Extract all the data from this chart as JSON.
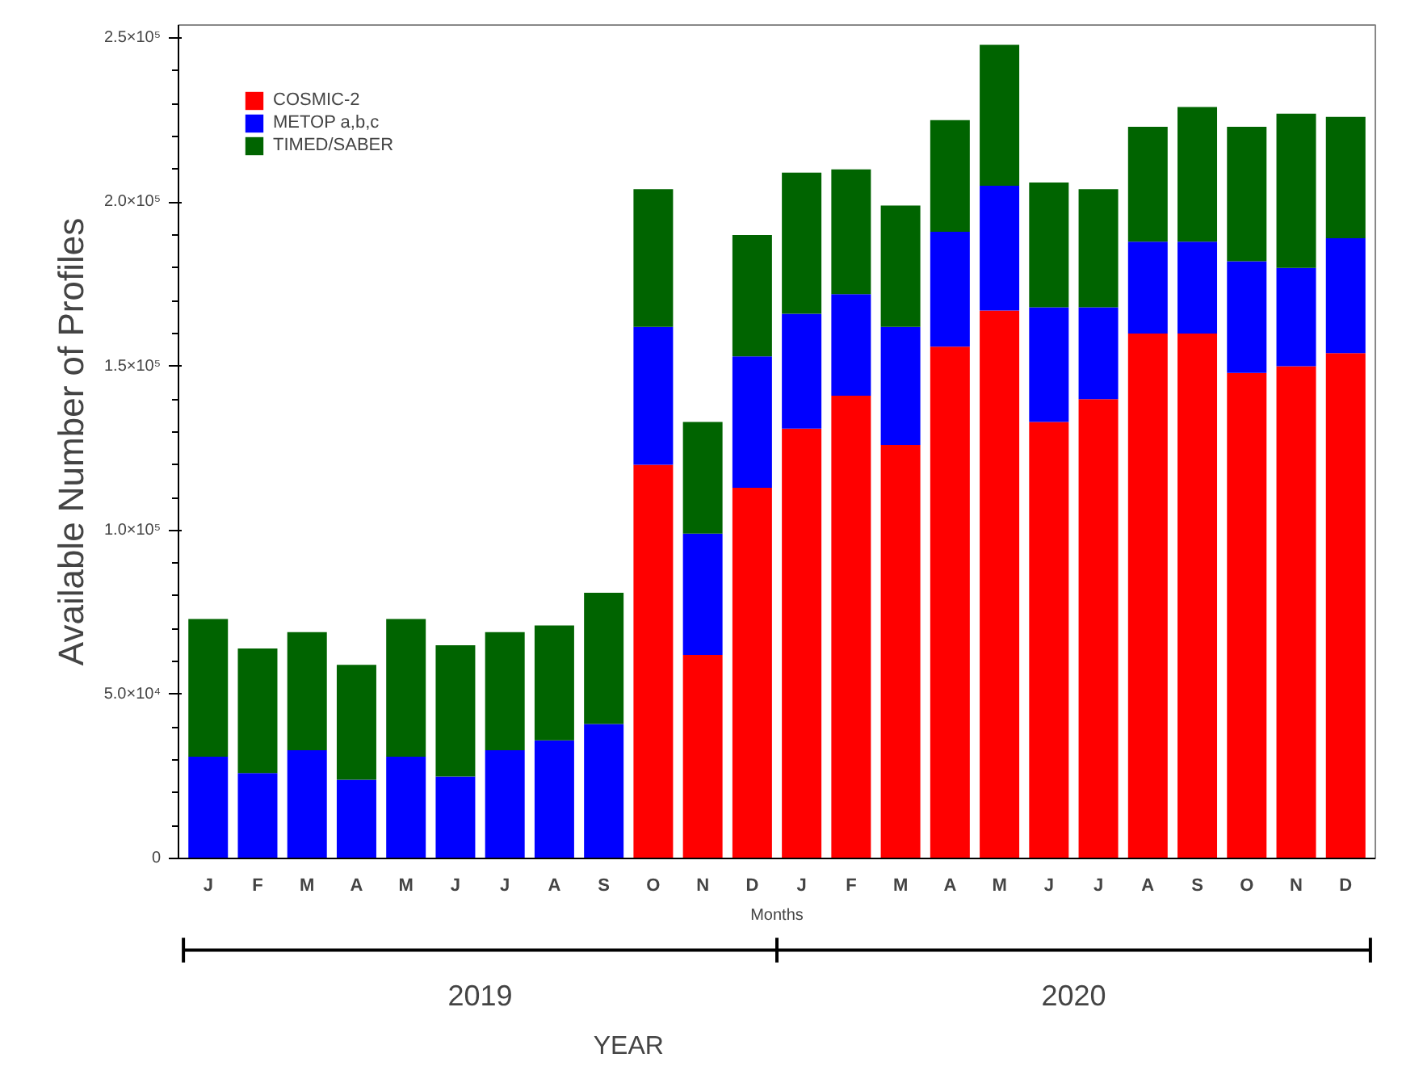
{
  "chart_data": {
    "type": "bar",
    "stacked": true,
    "ylabel": "Available Number of Profiles",
    "xlabel": "Months",
    "categories": [
      "J",
      "F",
      "M",
      "A",
      "M",
      "J",
      "J",
      "A",
      "S",
      "O",
      "N",
      "D",
      "J",
      "F",
      "M",
      "A",
      "M",
      "J",
      "J",
      "A",
      "S",
      "O",
      "N",
      "D"
    ],
    "series": [
      {
        "name": "COSMIC-2",
        "color": "#ff0000",
        "values": [
          0,
          0,
          0,
          0,
          0,
          0,
          0,
          0,
          0,
          120000,
          62000,
          113000,
          131000,
          141000,
          126000,
          156000,
          167000,
          133000,
          140000,
          160000,
          160000,
          148000,
          150000,
          154000
        ]
      },
      {
        "name": "METOP a,b,c",
        "color": "#0000ff",
        "values": [
          31000,
          26000,
          33000,
          24000,
          31000,
          25000,
          33000,
          36000,
          41000,
          42000,
          37000,
          40000,
          35000,
          31000,
          36000,
          35000,
          38000,
          35000,
          28000,
          28000,
          28000,
          34000,
          30000,
          35000
        ]
      },
      {
        "name": "TIMED/SABER",
        "color": "#006400",
        "values": [
          42000,
          38000,
          36000,
          35000,
          42000,
          40000,
          36000,
          35000,
          40000,
          42000,
          34000,
          37000,
          43000,
          38000,
          37000,
          34000,
          43000,
          38000,
          36000,
          35000,
          41000,
          41000,
          47000,
          37000
        ]
      }
    ],
    "ylim": [
      0,
      254000
    ],
    "yticks": [
      {
        "value": 0,
        "label": "0"
      },
      {
        "value": 50000,
        "label": "5.0×10⁴"
      },
      {
        "value": 100000,
        "label": "1.0×10⁵"
      },
      {
        "value": 150000,
        "label": "1.5×10⁵"
      },
      {
        "value": 200000,
        "label": "2.0×10⁵"
      },
      {
        "value": 250000,
        "label": "2.5×10⁵"
      }
    ],
    "grid": false,
    "legend": "top left",
    "annotations": [
      "2019",
      "2020",
      "YEAR"
    ]
  }
}
